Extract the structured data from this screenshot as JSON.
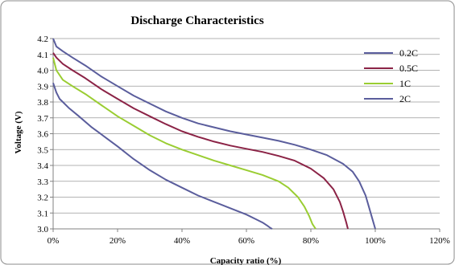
{
  "chart_data": {
    "type": "line",
    "title": "Discharge Characteristics",
    "xlabel": "Capacity ratio (%)",
    "ylabel": "Voltage (V)",
    "xlim": [
      0,
      120
    ],
    "ylim": [
      3.0,
      4.2
    ],
    "x_ticks": [
      "0%",
      "20%",
      "40%",
      "60%",
      "80%",
      "100%",
      "120%"
    ],
    "y_ticks": [
      "3.0",
      "3.1",
      "3.2",
      "3.3",
      "3.4",
      "3.5",
      "3.6",
      "3.7",
      "3.8",
      "3.9",
      "4.0",
      "4.1",
      "4.2"
    ],
    "grid": "horizontal",
    "legend_position": "right",
    "series": [
      {
        "name": "0.2C",
        "color": "#5a5d9c",
        "x": [
          0,
          1,
          3,
          6,
          10,
          15,
          20,
          25,
          30,
          35,
          40,
          45,
          50,
          55,
          60,
          65,
          70,
          75,
          80,
          85,
          90,
          93,
          95,
          97,
          98,
          99,
          100
        ],
        "y": [
          4.2,
          4.15,
          4.12,
          4.08,
          4.03,
          3.96,
          3.9,
          3.84,
          3.79,
          3.74,
          3.7,
          3.665,
          3.64,
          3.615,
          3.595,
          3.575,
          3.555,
          3.53,
          3.5,
          3.465,
          3.41,
          3.36,
          3.3,
          3.21,
          3.14,
          3.07,
          3.0
        ]
      },
      {
        "name": "0.5C",
        "color": "#8b2346",
        "x": [
          0,
          1,
          3,
          6,
          10,
          15,
          20,
          25,
          30,
          35,
          40,
          45,
          50,
          55,
          60,
          65,
          70,
          75,
          80,
          84,
          87,
          89,
          90,
          91,
          91.5
        ],
        "y": [
          4.11,
          4.08,
          4.04,
          4.0,
          3.95,
          3.88,
          3.82,
          3.76,
          3.71,
          3.66,
          3.615,
          3.58,
          3.55,
          3.525,
          3.505,
          3.485,
          3.46,
          3.43,
          3.38,
          3.32,
          3.25,
          3.17,
          3.11,
          3.04,
          3.0
        ]
      },
      {
        "name": "1C",
        "color": "#9acd32",
        "x": [
          0,
          1,
          3,
          6,
          10,
          15,
          20,
          25,
          30,
          35,
          40,
          45,
          50,
          55,
          60,
          65,
          70,
          73,
          76,
          78,
          79.5,
          80.5,
          81.5
        ],
        "y": [
          4.08,
          4.0,
          3.94,
          3.9,
          3.85,
          3.78,
          3.71,
          3.65,
          3.59,
          3.54,
          3.5,
          3.465,
          3.43,
          3.4,
          3.37,
          3.34,
          3.3,
          3.26,
          3.2,
          3.14,
          3.08,
          3.03,
          3.0
        ]
      },
      {
        "name": "2C",
        "color": "#5a5d9c",
        "x": [
          0,
          1,
          2,
          3,
          5,
          8,
          12,
          16,
          20,
          25,
          30,
          35,
          40,
          45,
          50,
          55,
          60,
          63,
          65,
          66.5,
          67.5,
          68
        ],
        "y": [
          3.92,
          3.86,
          3.82,
          3.8,
          3.76,
          3.71,
          3.64,
          3.58,
          3.52,
          3.44,
          3.37,
          3.31,
          3.26,
          3.21,
          3.17,
          3.13,
          3.09,
          3.06,
          3.04,
          3.02,
          3.005,
          3.0
        ]
      }
    ]
  }
}
